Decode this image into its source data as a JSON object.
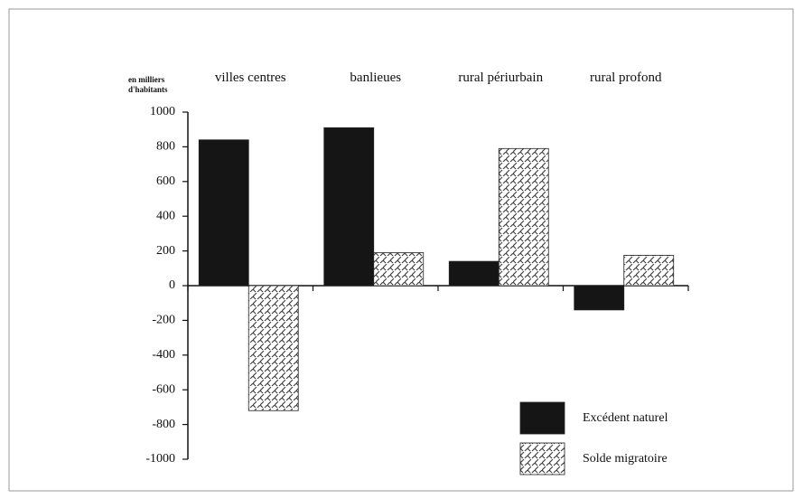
{
  "chart_data": {
    "type": "bar",
    "y_label": "en milliers d'habitants",
    "categories": [
      "villes centres",
      "banlieues",
      "rural périurbain",
      "rural profond"
    ],
    "series": [
      {
        "name": "Excédent naturel",
        "color": "#151515",
        "pattern": "solid",
        "values": [
          840,
          910,
          140,
          -140
        ]
      },
      {
        "name": "Solde migratoire",
        "color": "#444444",
        "pattern": "hatch",
        "values": [
          -720,
          190,
          790,
          175
        ]
      }
    ],
    "ylim": [
      -1000,
      1000
    ],
    "yticks": [
      -1000,
      -800,
      -600,
      -400,
      -200,
      0,
      200,
      400,
      600,
      800,
      1000
    ],
    "legend": "lower right"
  }
}
